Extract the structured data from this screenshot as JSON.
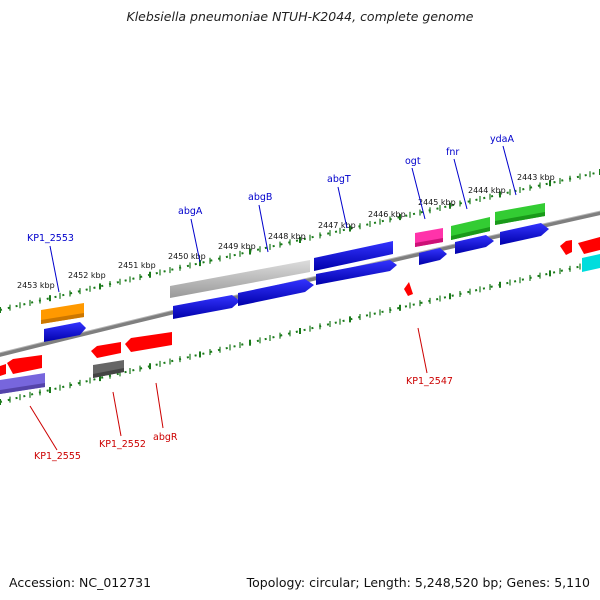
{
  "title": "Klebsiella pneumoniae NTUH-K2044, complete genome",
  "footer": {
    "accession": "Accession: NC_012731",
    "topology": "Topology: circular; Length: 5,248,520 bp; Genes: 5,110"
  },
  "colors": {
    "forward_label": "#0000cc",
    "reverse_label": "#cc0000",
    "backbone": "#7f7f7f",
    "ticks": "#1a7a1a"
  },
  "scale_labels": [
    "2453 kbp",
    "2452 kbp",
    "2451 kbp",
    "2450 kbp",
    "2449 kbp",
    "2448 kbp",
    "2447 kbp",
    "2446 kbp",
    "2445 kbp",
    "2444 kbp",
    "2443 kbp"
  ],
  "forward_labels": [
    "KP1_2553",
    "abgA",
    "abgB",
    "abgT",
    "ogt",
    "fnr",
    "ydaA"
  ],
  "reverse_labels": [
    "KP1_2555",
    "KP1_2552",
    "abgR",
    "KP1_2547"
  ],
  "features": [
    {
      "name": "KP1_2553",
      "color": "#ff9900",
      "strand": "+"
    },
    {
      "name": "gene-blue-1",
      "color": "#0000dd",
      "strand": "+"
    },
    {
      "name": "abgA",
      "color": "#bbbbbb",
      "strand": "+"
    },
    {
      "name": "abgB",
      "color": "#0000dd",
      "strand": "+"
    },
    {
      "name": "abgT",
      "color": "#0000dd",
      "strand": "+"
    },
    {
      "name": "ogt",
      "color": "#ff33aa",
      "strand": "+"
    },
    {
      "name": "fnr",
      "color": "#33cc33",
      "strand": "+"
    },
    {
      "name": "ydaA",
      "color": "#33cc33",
      "strand": "+"
    },
    {
      "name": "KP1_2555",
      "color": "#ff0000",
      "strand": "-"
    },
    {
      "name": "KP1_2552",
      "color": "#666666",
      "strand": "-"
    },
    {
      "name": "abgR",
      "color": "#ff0000",
      "strand": "-"
    },
    {
      "name": "KP1_2547",
      "color": "#ff0000",
      "strand": "-"
    },
    {
      "name": "purple-gene",
      "color": "#7766dd",
      "strand": "-"
    },
    {
      "name": "cyan-gene",
      "color": "#00dddd",
      "strand": "+"
    }
  ]
}
